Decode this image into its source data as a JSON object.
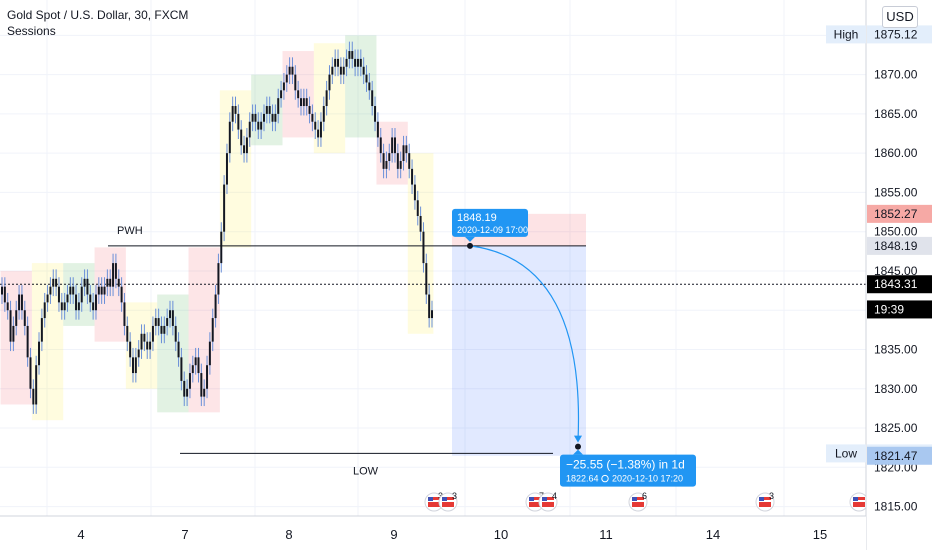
{
  "header": {
    "title": "Gold Spot / U.S. Dollar, 30, FXCM",
    "indicator": "Sessions",
    "currency": "USD"
  },
  "chart_data": {
    "type": "candlestick",
    "symbol": "Gold Spot / U.S. Dollar",
    "interval": "30",
    "source": "FXCM",
    "y_ticks": [
      1815,
      1820,
      1825,
      1830,
      1835,
      1840,
      1845,
      1850,
      1855,
      1860,
      1865,
      1870,
      1875
    ],
    "y_tick_labels": [
      "1815.00",
      "1820.00",
      "1825.00",
      "1830.00",
      "1835.00",
      "1840.00",
      "1845.00",
      "1850.00",
      "1855.00",
      "1860.00",
      "1865.00",
      "1870.00",
      "1875.00"
    ],
    "ylim": [
      1813.8,
      1879.5
    ],
    "x_ticks": [
      {
        "label": "4",
        "day": 4
      },
      {
        "label": "7",
        "day": 7
      },
      {
        "label": "8",
        "day": 8
      },
      {
        "label": "9",
        "day": 9
      },
      {
        "label": "10",
        "day": 10
      },
      {
        "label": "11",
        "day": 11
      },
      {
        "label": "14",
        "day": 14
      },
      {
        "label": "15",
        "day": 15
      }
    ],
    "price_badges": [
      {
        "label": "High",
        "value": "1875.12",
        "price": 1875.12,
        "color": "#e3eefb",
        "text_color": "#131722"
      },
      {
        "label": "",
        "value": "1852.27",
        "price": 1852.27,
        "color": "#f6a9a5",
        "text_color": "#131722"
      },
      {
        "label": "",
        "value": "1848.19",
        "price": 1848.19,
        "color": "#e0e3eb",
        "text_color": "#131722"
      },
      {
        "label": "",
        "value": "1843.31",
        "price": 1843.31,
        "color": "#000000",
        "text_color": "#ffffff"
      },
      {
        "label": "",
        "value": "19:39",
        "price": 1840.1,
        "color": "#000000",
        "text_color": "#ffffff"
      },
      {
        "label": "Low",
        "value": "1821.77",
        "price": 1821.77,
        "color": "#e3eefb",
        "text_color": "#131722"
      },
      {
        "label": "",
        "value": "1821.47",
        "price": 1821.47,
        "color": "#a9c8f0",
        "text_color": "#131722"
      }
    ],
    "levels": [
      {
        "label": "PWH",
        "price": 1848.19
      },
      {
        "label": "LOW",
        "price": 1821.77
      }
    ],
    "current_price": 1843.31,
    "projection": {
      "start_price": "1848.19",
      "start_time": "2020-12-09 17:00",
      "change": "−25.55 (−1.38%) in 1d",
      "end_price": "1822.64",
      "end_time": "2020-12-10  17:20",
      "start_value": 1848.19,
      "end_value": 1822.64,
      "target_value": 1852.27,
      "box_low": 1821.47
    },
    "event_badges": [
      "3",
      "3",
      "7",
      "4",
      "6",
      "3",
      ""
    ],
    "closes": [
      1843,
      1841,
      1840,
      1836,
      1838,
      1840,
      1842,
      1840,
      1838,
      1834,
      1830,
      1828,
      1833,
      1836,
      1839,
      1841,
      1842,
      1843,
      1844,
      1843,
      1841,
      1840,
      1841,
      1842,
      1843,
      1842,
      1840,
      1841,
      1843,
      1844,
      1842,
      1841,
      1840,
      1842,
      1843,
      1842,
      1843,
      1844,
      1843,
      1846,
      1844,
      1843,
      1841,
      1838,
      1836,
      1834,
      1832,
      1834,
      1835,
      1837,
      1836,
      1835,
      1836,
      1838,
      1839,
      1838,
      1837,
      1838,
      1839,
      1840,
      1838,
      1836,
      1834,
      1831,
      1829,
      1830,
      1832,
      1833,
      1834,
      1832,
      1829,
      1830,
      1833,
      1836,
      1839,
      1842,
      1846,
      1850,
      1856,
      1860,
      1864,
      1866,
      1865,
      1863,
      1861,
      1860,
      1862,
      1864,
      1865,
      1864,
      1863,
      1864,
      1865,
      1866,
      1865,
      1864,
      1865,
      1867,
      1868,
      1869,
      1870,
      1871,
      1870,
      1868,
      1867,
      1866,
      1867,
      1866,
      1865,
      1864,
      1863,
      1862,
      1864,
      1866,
      1868,
      1870,
      1871,
      1872,
      1871,
      1870,
      1871,
      1872,
      1873,
      1872,
      1871,
      1872,
      1871,
      1870,
      1869,
      1868,
      1866,
      1864,
      1862,
      1860,
      1858,
      1859,
      1860,
      1862,
      1860,
      1858,
      1859,
      1861,
      1860,
      1858,
      1856,
      1854,
      1852,
      1850,
      1846,
      1842,
      1839,
      1840
    ]
  }
}
